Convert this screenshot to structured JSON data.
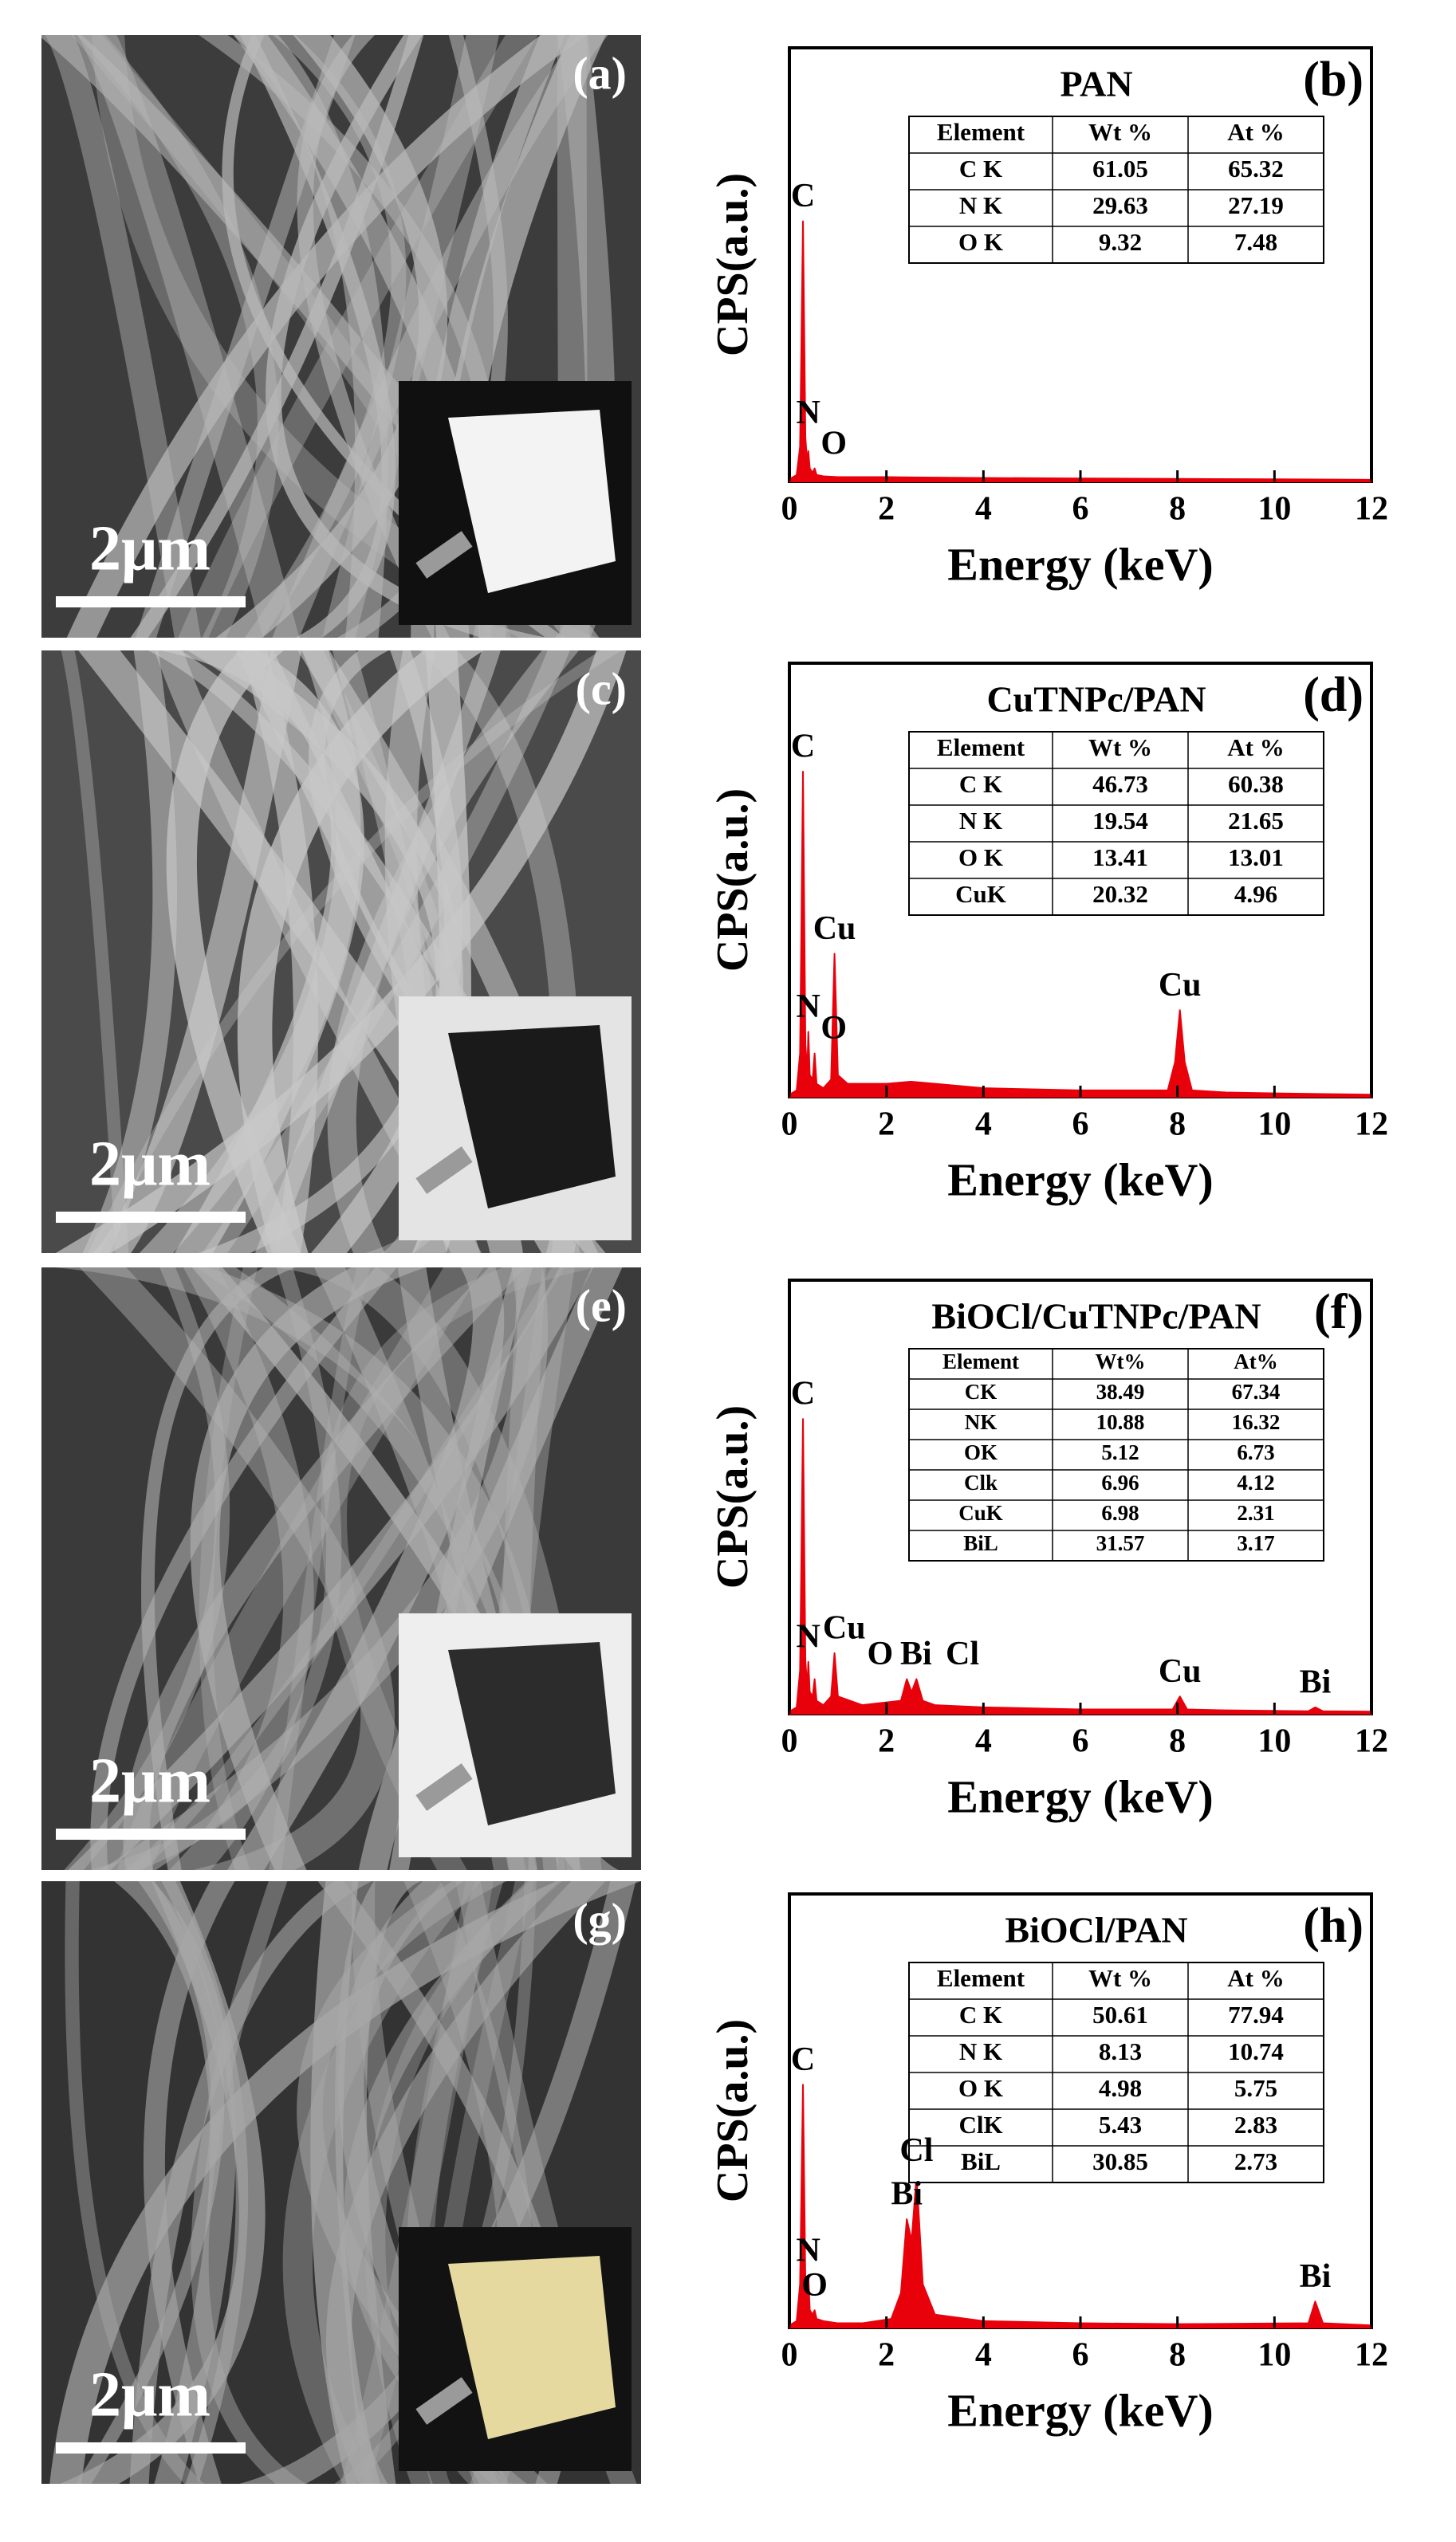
{
  "panels": [
    {
      "label": "(a)",
      "scale_bar": "2μm"
    },
    {
      "label": "(c)",
      "scale_bar": "2μm"
    },
    {
      "label": "(e)",
      "scale_bar": "2μm"
    },
    {
      "label": "(g)",
      "scale_bar": "2μm"
    }
  ],
  "chart_data": [
    {
      "type": "area",
      "title": "PAN",
      "panel_label": "(b)",
      "x_label": "Energy (keV)",
      "y_label": "CPS(a.u.)",
      "color": "#e8000b",
      "xlim": [
        0,
        12
      ],
      "xticks": [
        0,
        2,
        4,
        6,
        8,
        10,
        12
      ],
      "ylim": [
        0,
        100
      ],
      "x": [
        0,
        0.15,
        0.22,
        0.28,
        0.33,
        0.37,
        0.39,
        0.42,
        0.48,
        0.52,
        0.56,
        0.7,
        1,
        2,
        4,
        6,
        8,
        10,
        12
      ],
      "values": [
        0.5,
        1.5,
        8,
        60,
        10,
        4,
        7,
        3,
        2,
        3,
        1.5,
        1.2,
        1,
        1,
        0.8,
        0.7,
        0.6,
        0.5,
        0.4
      ],
      "annotations": [
        {
          "text": "C",
          "x": 0.28
        },
        {
          "text": "N",
          "x": 0.39
        },
        {
          "text": "O",
          "x": 0.52
        }
      ],
      "table": {
        "header": [
          "Element",
          "Wt %",
          "At %"
        ],
        "rows": [
          [
            "C K",
            61.05,
            65.32
          ],
          [
            "N K",
            29.63,
            27.19
          ],
          [
            "O K",
            9.32,
            7.48
          ]
        ]
      }
    },
    {
      "type": "area",
      "title": "CuTNPc/PAN",
      "panel_label": "(d)",
      "x_label": "Energy (keV)",
      "y_label": "CPS(a.u.)",
      "color": "#e8000b",
      "xlim": [
        0,
        12
      ],
      "xticks": [
        0,
        2,
        4,
        6,
        8,
        10,
        12
      ],
      "ylim": [
        0,
        100
      ],
      "x": [
        0,
        0.15,
        0.22,
        0.28,
        0.33,
        0.37,
        0.39,
        0.42,
        0.48,
        0.52,
        0.56,
        0.7,
        0.86,
        0.93,
        1,
        1.2,
        2,
        2.5,
        3,
        4,
        6,
        7.8,
        7.95,
        8.05,
        8.15,
        8.3,
        9,
        10,
        12
      ],
      "values": [
        0.5,
        1.5,
        10,
        75,
        12,
        6,
        15,
        5,
        4,
        10,
        3,
        2,
        4,
        33,
        5,
        3,
        3,
        3.5,
        3,
        2,
        1.5,
        1.5,
        8,
        20,
        8,
        1.5,
        1,
        0.8,
        0.5
      ],
      "annotations": [
        {
          "text": "C",
          "x": 0.28
        },
        {
          "text": "Cu",
          "x": 0.93
        },
        {
          "text": "N",
          "x": 0.39
        },
        {
          "text": "O",
          "x": 0.52
        },
        {
          "text": "Cu",
          "x": 8.05
        }
      ],
      "table": {
        "header": [
          "Element",
          "Wt %",
          "At %"
        ],
        "rows": [
          [
            "C K",
            46.73,
            60.38
          ],
          [
            "N K",
            19.54,
            21.65
          ],
          [
            "O K",
            13.41,
            13.01
          ],
          [
            "CuK",
            20.32,
            4.96
          ]
        ]
      }
    },
    {
      "type": "area",
      "title": "BiOCl/CuTNPc/PAN",
      "panel_label": "(f)",
      "x_label": "Energy (keV)",
      "y_label": "CPS(a.u.)",
      "color": "#e8000b",
      "xlim": [
        0,
        12
      ],
      "xticks": [
        0,
        2,
        4,
        6,
        8,
        10,
        12
      ],
      "ylim": [
        0,
        100
      ],
      "x": [
        0,
        0.15,
        0.22,
        0.28,
        0.33,
        0.37,
        0.39,
        0.42,
        0.48,
        0.52,
        0.56,
        0.7,
        0.86,
        0.93,
        1,
        1.5,
        2.3,
        2.42,
        2.52,
        2.62,
        2.75,
        3,
        4,
        6,
        7.9,
        8.05,
        8.2,
        9,
        10.7,
        10.84,
        11,
        12
      ],
      "values": [
        0.5,
        1.5,
        10,
        68,
        12,
        6,
        12,
        5,
        4,
        8,
        3,
        2,
        4,
        14,
        4,
        2,
        3,
        8,
        5,
        8,
        3,
        2,
        1.5,
        1,
        1,
        4,
        1,
        0.8,
        0.6,
        1.5,
        0.6,
        0.5
      ],
      "annotations": [
        {
          "text": "C",
          "x": 0.28
        },
        {
          "text": "N",
          "x": 0.39
        },
        {
          "text": "Cu",
          "x": 0.93
        },
        {
          "text": "O",
          "x": 0.52
        },
        {
          "text": "Bi",
          "x": 2.42
        },
        {
          "text": "Cl",
          "x": 2.62
        },
        {
          "text": "Cu",
          "x": 8.05
        },
        {
          "text": "Bi",
          "x": 10.84
        }
      ],
      "table": {
        "header": [
          "Element",
          "Wt%",
          "At%"
        ],
        "rows": [
          [
            "CK",
            38.49,
            67.34
          ],
          [
            "NK",
            10.88,
            16.32
          ],
          [
            "OK",
            5.12,
            6.73
          ],
          [
            "Clk",
            6.96,
            4.12
          ],
          [
            "CuK",
            6.98,
            2.31
          ],
          [
            "BiL",
            31.57,
            3.17
          ]
        ]
      }
    },
    {
      "type": "area",
      "title": "BiOCl/PAN",
      "panel_label": "(h)",
      "x_label": "Energy (keV)",
      "y_label": "CPS(a.u.)",
      "color": "#e8000b",
      "xlim": [
        0,
        12
      ],
      "xticks": [
        0,
        2,
        4,
        6,
        8,
        10,
        12
      ],
      "ylim": [
        0,
        100
      ],
      "x": [
        0,
        0.15,
        0.22,
        0.28,
        0.33,
        0.37,
        0.39,
        0.42,
        0.48,
        0.52,
        0.56,
        0.7,
        1,
        1.5,
        2.1,
        2.3,
        2.42,
        2.52,
        2.62,
        2.75,
        3,
        4,
        6,
        8,
        10.7,
        10.84,
        11,
        12
      ],
      "values": [
        0.5,
        1.5,
        10,
        56,
        10,
        5,
        12,
        4,
        3,
        4,
        2,
        1.5,
        1,
        1,
        2,
        8,
        25,
        20,
        35,
        10,
        3,
        1.5,
        1,
        0.8,
        1,
        6,
        1,
        0.5
      ],
      "annotations": [
        {
          "text": "C",
          "x": 0.28
        },
        {
          "text": "N",
          "x": 0.39
        },
        {
          "text": "O",
          "x": 0.52
        },
        {
          "text": "Bi",
          "x": 2.42
        },
        {
          "text": "Cl",
          "x": 2.62
        },
        {
          "text": "Bi",
          "x": 10.84
        }
      ],
      "table": {
        "header": [
          "Element",
          "Wt %",
          "At %"
        ],
        "rows": [
          [
            "C K",
            50.61,
            77.94
          ],
          [
            "N K",
            8.13,
            10.74
          ],
          [
            "O K",
            4.98,
            5.75
          ],
          [
            "ClK",
            5.43,
            2.83
          ],
          [
            "BiL",
            30.85,
            2.73
          ]
        ]
      }
    }
  ]
}
